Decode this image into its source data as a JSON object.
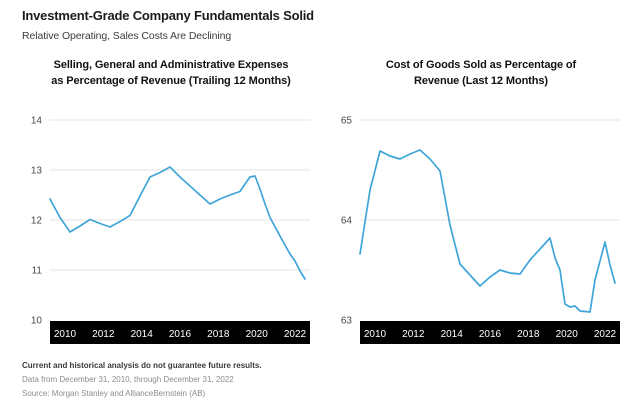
{
  "header": {
    "title": "Investment-Grade Company Fundamentals Solid",
    "subtitle": "Relative Operating, Sales Costs Are Declining"
  },
  "colors": {
    "line": "#3fa5d9",
    "grid": "#e6e6e6",
    "axis_strip": "#000000",
    "ytick_label": "#4a4a4a",
    "xtick_label": "#ffffff"
  },
  "chart_data": [
    {
      "type": "line",
      "title_lines": [
        "Selling, General and Administrative Expenses",
        "as Percentage of Revenue (Trailing 12 Months)"
      ],
      "legend": [],
      "grid": true,
      "yticks": [
        14,
        13,
        12,
        11,
        10
      ],
      "ylim": [
        10,
        14
      ],
      "xticks": [
        "2010",
        "2012",
        "2014",
        "2016",
        "2018",
        "2020",
        "2022"
      ],
      "xlim": [
        2010,
        2023
      ],
      "points": [
        [
          2010.0,
          12.42
        ],
        [
          2010.5,
          12.05
        ],
        [
          2011.0,
          11.76
        ],
        [
          2011.5,
          11.88
        ],
        [
          2012.0,
          12.01
        ],
        [
          2012.5,
          11.93
        ],
        [
          2013.0,
          11.86
        ],
        [
          2013.5,
          11.97
        ],
        [
          2014.0,
          12.09
        ],
        [
          2014.5,
          12.48
        ],
        [
          2015.0,
          12.86
        ],
        [
          2015.5,
          12.95
        ],
        [
          2016.0,
          13.06
        ],
        [
          2016.5,
          12.86
        ],
        [
          2017.0,
          12.68
        ],
        [
          2017.5,
          12.5
        ],
        [
          2018.0,
          12.32
        ],
        [
          2018.5,
          12.42
        ],
        [
          2019.0,
          12.5
        ],
        [
          2019.5,
          12.57
        ],
        [
          2019.75,
          12.72
        ],
        [
          2020.0,
          12.86
        ],
        [
          2020.25,
          12.88
        ],
        [
          2020.5,
          12.62
        ],
        [
          2020.75,
          12.32
        ],
        [
          2021.0,
          12.05
        ],
        [
          2021.5,
          11.68
        ],
        [
          2022.0,
          11.32
        ],
        [
          2022.25,
          11.18
        ],
        [
          2022.5,
          10.98
        ],
        [
          2022.75,
          10.82
        ]
      ]
    },
    {
      "type": "line",
      "title_lines": [
        "Cost of Goods Sold as Percentage of",
        "Revenue (Last 12 Months)"
      ],
      "legend": [],
      "grid": true,
      "yticks": [
        65,
        64,
        63
      ],
      "ylim": [
        63,
        65
      ],
      "xticks": [
        "2010",
        "2012",
        "2014",
        "2016",
        "2018",
        "2020",
        "2022"
      ],
      "xlim": [
        2010,
        2023
      ],
      "points": [
        [
          2010.0,
          63.66
        ],
        [
          2010.5,
          64.3
        ],
        [
          2011.0,
          64.69
        ],
        [
          2011.5,
          64.64
        ],
        [
          2012.0,
          64.61
        ],
        [
          2012.5,
          64.66
        ],
        [
          2013.0,
          64.7
        ],
        [
          2013.5,
          64.61
        ],
        [
          2014.0,
          64.49
        ],
        [
          2014.5,
          63.95
        ],
        [
          2015.0,
          63.56
        ],
        [
          2015.5,
          63.45
        ],
        [
          2016.0,
          63.34
        ],
        [
          2016.5,
          63.43
        ],
        [
          2017.0,
          63.5
        ],
        [
          2017.5,
          63.47
        ],
        [
          2018.0,
          63.46
        ],
        [
          2018.5,
          63.6
        ],
        [
          2019.0,
          63.71
        ],
        [
          2019.5,
          63.82
        ],
        [
          2019.75,
          63.62
        ],
        [
          2020.0,
          63.5
        ],
        [
          2020.25,
          63.16
        ],
        [
          2020.5,
          63.13
        ],
        [
          2020.75,
          63.14
        ],
        [
          2021.0,
          63.09
        ],
        [
          2021.5,
          63.08
        ],
        [
          2021.75,
          63.4
        ],
        [
          2022.25,
          63.78
        ],
        [
          2022.5,
          63.55
        ],
        [
          2022.75,
          63.37
        ]
      ]
    }
  ],
  "footer": {
    "disclaimer": "Current and historical analysis do not guarantee future results.",
    "data_range": "Data from December 31, 2010, through December 31, 2022",
    "source": "Source: Morgan Stanley and AllianceBernstein (AB)"
  }
}
